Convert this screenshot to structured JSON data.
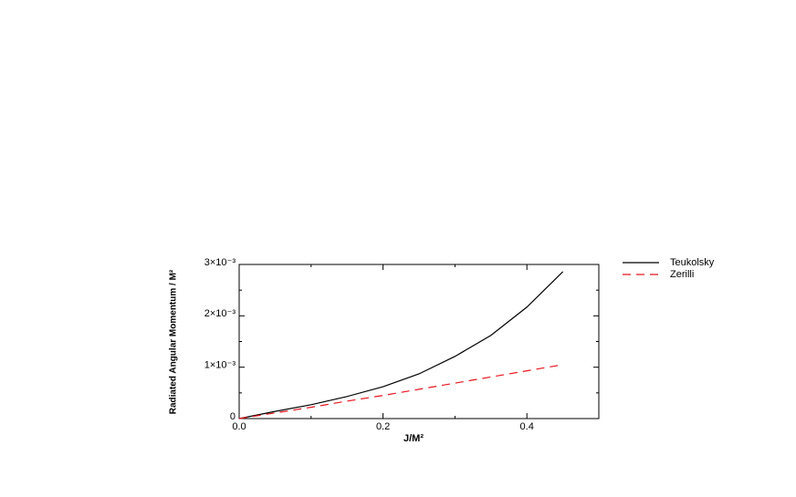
{
  "chart_data": {
    "type": "line",
    "x_label": "J/M²",
    "y_label": "Radiated Angular Momentum / M²",
    "x": [
      0,
      0.05,
      0.1,
      0.15,
      0.2,
      0.25,
      0.3,
      0.35,
      0.4,
      0.45
    ],
    "series": [
      {
        "name": "Teukolsky",
        "color": "#000000",
        "dash": "solid",
        "values": [
          0,
          0.00014,
          0.00027,
          0.00043,
          0.00062,
          0.00087,
          0.00121,
          0.00162,
          0.00217,
          0.00286
        ]
      },
      {
        "name": "Zerilli",
        "color": "#e8141e",
        "dash": "dashed",
        "values": [
          0,
          0.00011,
          0.00022,
          0.00034,
          0.00045,
          0.00057,
          0.00069,
          0.00081,
          0.00093,
          0.00105
        ]
      }
    ],
    "xlim": [
      0,
      0.5
    ],
    "ylim": [
      0,
      0.003
    ],
    "xticks": [
      {
        "value": 0,
        "label": "0.0"
      },
      0.2,
      0.4
    ],
    "yticks": [
      0,
      {
        "value": 0.001,
        "label": "1×10⁻³"
      },
      {
        "value": 0.002,
        "label": "2×10⁻³"
      },
      {
        "value": 0.003,
        "label": "3×10⁻³"
      }
    ],
    "legend": "outside-top-right"
  }
}
